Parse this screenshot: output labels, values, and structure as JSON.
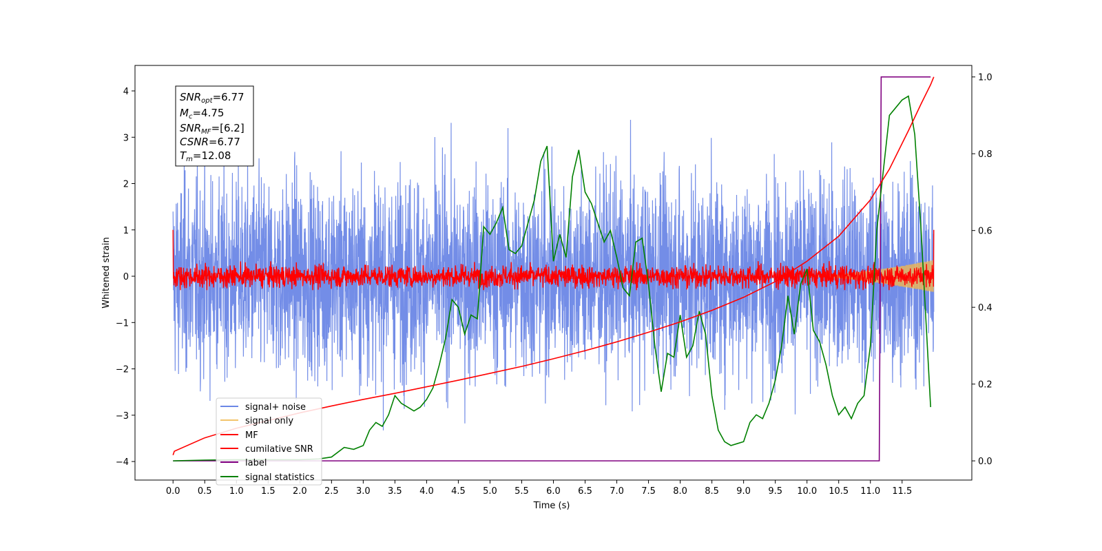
{
  "chart_data": {
    "type": "line",
    "xlabel": "Time (s)",
    "ylabel": "Whitened strain",
    "xlim": [
      -0.6,
      12.6
    ],
    "ylim": [
      -4.4,
      4.55
    ],
    "y2lim": [
      -0.05,
      1.03
    ],
    "x_ticks": [
      "0.0",
      "0.5",
      "1.0",
      "1.5",
      "2.0",
      "2.5",
      "3.0",
      "3.5",
      "4.0",
      "4.5",
      "5.0",
      "5.5",
      "6.0",
      "6.5",
      "7.0",
      "7.5",
      "8.0",
      "8.5",
      "9.0",
      "9.5",
      "10.0",
      "10.5",
      "11.0",
      "11.5"
    ],
    "y_ticks": [
      "4",
      "3",
      "2",
      "1",
      "0",
      "−1",
      "−2",
      "−3",
      "−4"
    ],
    "y2_ticks": [
      "1.0",
      "0.8",
      "0.6",
      "0.4",
      "0.2",
      "0.0"
    ],
    "stats": {
      "snr_opt": {
        "base": "SNR",
        "sub": "opt",
        "value": "=6.77"
      },
      "mc": {
        "base": "M",
        "sub": "c",
        "value": "=4.75"
      },
      "snr_mf": {
        "base": "SNR",
        "sub": "MF",
        "value": "=[6.2]"
      },
      "csnr": {
        "base": "CSNR",
        "sub": "",
        "value": "=6.77"
      },
      "tm": {
        "base": "T",
        "sub": "m",
        "value": "=12.08"
      }
    },
    "legend": [
      {
        "name": "signal+ noise",
        "color": "#6b87e6"
      },
      {
        "name": "signal only",
        "color": "#f2c46a"
      },
      {
        "name": "MF",
        "color": "#ff0000"
      },
      {
        "name": "cumilative SNR",
        "color": "#ff0000"
      },
      {
        "name": "label",
        "color": "#800080"
      },
      {
        "name": "signal statistics",
        "color": "#008000"
      }
    ],
    "series": [
      {
        "name": "signal+ noise",
        "axis": "left",
        "kind": "noise",
        "color": "#6b87e6",
        "t_start": 0.0,
        "t_end": 12.0,
        "amplitude_range": [
          -4.0,
          4.17
        ]
      },
      {
        "name": "signal only",
        "axis": "left",
        "kind": "chirp",
        "color": "#e8b45a",
        "t_start": 10.0,
        "t_end": 12.0,
        "peak_amplitude": 0.35
      },
      {
        "name": "MF",
        "axis": "left",
        "kind": "noise",
        "color": "#ff0000",
        "t_start": 0.0,
        "t_end": 12.0,
        "amplitude_range": [
          -0.3,
          0.5
        ]
      },
      {
        "name": "cumilative SNR",
        "axis": "right",
        "color": "#ff0000",
        "x": [
          0.0,
          0.02,
          0.5,
          1.0,
          1.5,
          2.0,
          2.5,
          3.0,
          3.5,
          4.0,
          4.5,
          5.0,
          5.5,
          6.0,
          6.5,
          7.0,
          7.5,
          8.0,
          8.5,
          9.0,
          9.5,
          10.0,
          10.5,
          11.0,
          11.3,
          11.6,
          11.8,
          11.95,
          12.0
        ],
        "y": [
          0.015,
          0.025,
          0.06,
          0.085,
          0.105,
          0.125,
          0.143,
          0.16,
          0.176,
          0.193,
          0.21,
          0.228,
          0.246,
          0.266,
          0.287,
          0.31,
          0.335,
          0.362,
          0.392,
          0.426,
          0.467,
          0.52,
          0.585,
          0.68,
          0.76,
          0.86,
          0.93,
          0.98,
          1.0
        ]
      },
      {
        "name": "label",
        "axis": "right",
        "color": "#800080",
        "x": [
          0.0,
          11.14,
          11.17,
          11.95
        ],
        "y": [
          0.0,
          0.0,
          1.0,
          1.0
        ]
      },
      {
        "name": "signal statistics",
        "axis": "right",
        "color": "#008000",
        "x": [
          0.0,
          0.5,
          1.0,
          1.5,
          2.0,
          2.3,
          2.5,
          2.7,
          2.85,
          3.0,
          3.1,
          3.2,
          3.3,
          3.4,
          3.5,
          3.6,
          3.7,
          3.8,
          3.9,
          4.0,
          4.1,
          4.2,
          4.3,
          4.4,
          4.5,
          4.6,
          4.7,
          4.8,
          4.9,
          5.0,
          5.1,
          5.2,
          5.3,
          5.4,
          5.5,
          5.6,
          5.7,
          5.8,
          5.9,
          6.0,
          6.1,
          6.2,
          6.3,
          6.4,
          6.5,
          6.6,
          6.7,
          6.8,
          6.9,
          7.0,
          7.1,
          7.2,
          7.3,
          7.4,
          7.5,
          7.6,
          7.7,
          7.8,
          7.9,
          8.0,
          8.1,
          8.2,
          8.3,
          8.4,
          8.5,
          8.6,
          8.7,
          8.8,
          8.9,
          9.0,
          9.1,
          9.2,
          9.3,
          9.4,
          9.5,
          9.6,
          9.7,
          9.8,
          9.9,
          10.0,
          10.1,
          10.2,
          10.3,
          10.4,
          10.5,
          10.6,
          10.7,
          10.8,
          10.9,
          11.0,
          11.1,
          11.2,
          11.3,
          11.4,
          11.5,
          11.6,
          11.7,
          11.8,
          11.95
        ],
        "y": [
          0.0,
          0.002,
          0.003,
          0.003,
          0.003,
          0.005,
          0.01,
          0.035,
          0.03,
          0.04,
          0.08,
          0.1,
          0.09,
          0.12,
          0.17,
          0.15,
          0.14,
          0.13,
          0.14,
          0.16,
          0.19,
          0.25,
          0.32,
          0.42,
          0.4,
          0.33,
          0.38,
          0.37,
          0.61,
          0.59,
          0.62,
          0.66,
          0.55,
          0.54,
          0.56,
          0.62,
          0.68,
          0.78,
          0.82,
          0.52,
          0.59,
          0.53,
          0.74,
          0.81,
          0.7,
          0.67,
          0.62,
          0.57,
          0.6,
          0.53,
          0.45,
          0.43,
          0.57,
          0.58,
          0.46,
          0.3,
          0.18,
          0.28,
          0.27,
          0.38,
          0.27,
          0.3,
          0.39,
          0.33,
          0.17,
          0.08,
          0.05,
          0.04,
          0.045,
          0.05,
          0.1,
          0.12,
          0.11,
          0.15,
          0.21,
          0.3,
          0.43,
          0.33,
          0.46,
          0.5,
          0.34,
          0.31,
          0.25,
          0.17,
          0.12,
          0.14,
          0.11,
          0.15,
          0.17,
          0.3,
          0.6,
          0.75,
          0.9,
          0.92,
          0.94,
          0.95,
          0.85,
          0.6,
          0.14
        ]
      }
    ]
  }
}
